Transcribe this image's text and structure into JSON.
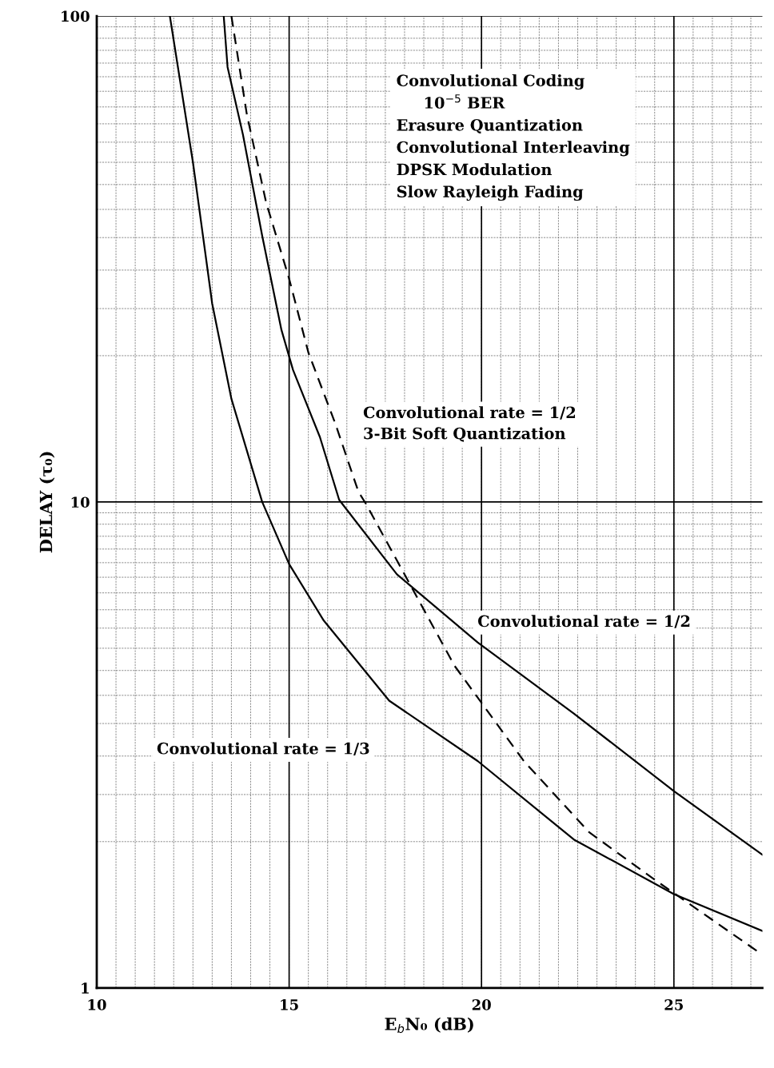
{
  "chart_data": {
    "type": "line",
    "xlabel": "E$_{b}$N₀ (dB)",
    "ylabel": "DELAY (τ₀)",
    "log": "y",
    "xlim": [
      10,
      27.3
    ],
    "ylim": [
      1,
      100
    ],
    "xticks": [
      10,
      15,
      20,
      25
    ],
    "yticks": [
      1,
      10,
      100
    ],
    "grid": true,
    "marker": "none",
    "legend": false,
    "annotations": [
      "Convolutional Coding\n     10$^{−5}$ BER\nErasure Quantization\nConvolutional Interleaving\nDPSK Modulation\nSlow Rayleigh Fading"
    ],
    "series": [
      {
        "name": "Convolutional rate = 1/3",
        "color": "#000000",
        "line_style": "solid",
        "x": [
          11.9,
          12.5,
          13.0,
          13.5,
          14.3,
          15.0,
          15.9,
          17.6,
          19.9,
          22.4,
          25.0,
          27.3
        ],
        "values": [
          100,
          50,
          25.6,
          16.3,
          10,
          7.45,
          5.7,
          3.9,
          2.93,
          2.02,
          1.56,
          1.31
        ]
      },
      {
        "name": "Convolutional rate = 1/2",
        "color": "#000000",
        "line_style": "solid",
        "x": [
          13.3,
          13.4,
          13.8,
          14.3,
          14.8,
          15.1,
          15.8,
          16.3,
          17.8,
          19.9,
          22.4,
          25.0,
          27.3
        ],
        "values": [
          100,
          78.5,
          57,
          35.3,
          22.6,
          18.7,
          13.6,
          10.1,
          7.1,
          5.14,
          3.67,
          2.54,
          1.88
        ]
      },
      {
        "name": "Convolutional rate = 1/2\n3-Bit Soft Quantization",
        "color": "#000000",
        "line_style": "dashed",
        "x": [
          13.5,
          13.9,
          14.4,
          15.0,
          15.5,
          16.2,
          16.8,
          17.0,
          19.3,
          21.1,
          22.8,
          24.5,
          27.3
        ],
        "values": [
          100,
          62.8,
          41.4,
          28.8,
          20.3,
          14.5,
          10.5,
          9.9,
          4.6,
          2.93,
          2.09,
          1.67,
          1.17
        ]
      }
    ]
  }
}
